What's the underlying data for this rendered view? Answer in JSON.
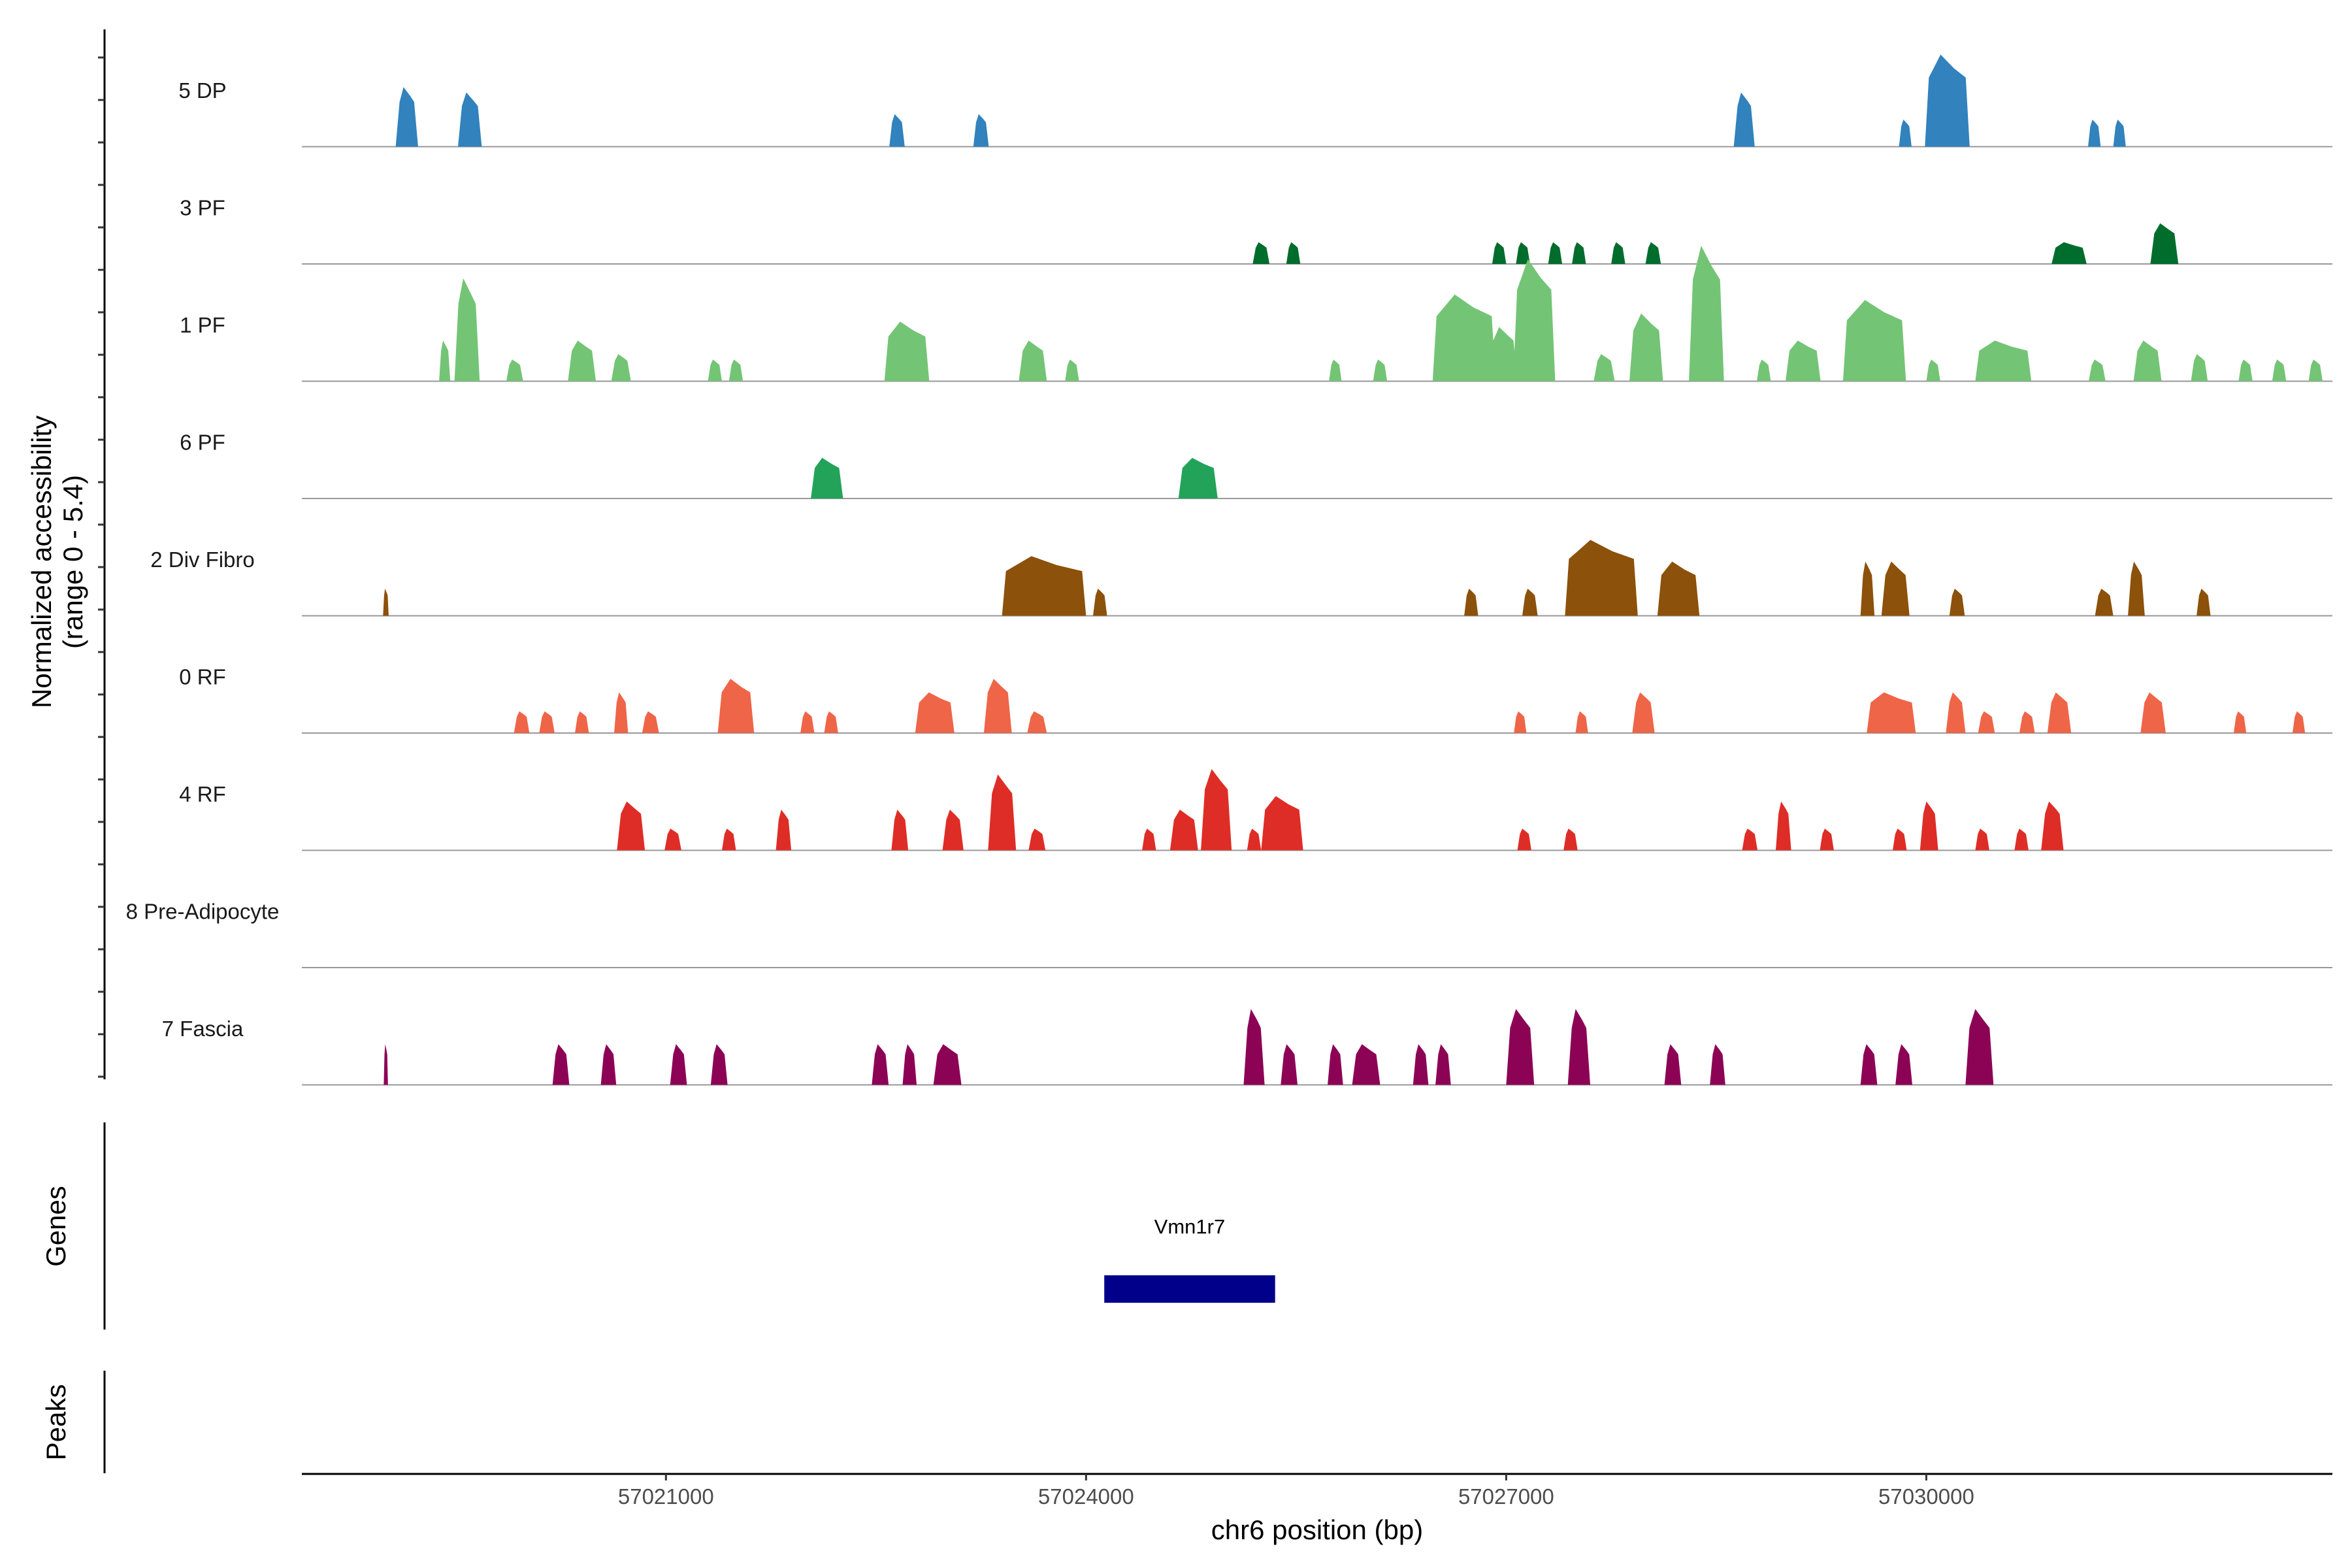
{
  "chart_data": {
    "type": "coverage",
    "y_axis_title": "Normalized accessibility",
    "y_axis_range_text": "(range 0 - 5.4)",
    "ylim": [
      0,
      5.4
    ],
    "x_axis_title": "chr6 position (bp)",
    "xlim": [
      57018400,
      57032900
    ],
    "x_ticks": [
      {
        "value": 57021000,
        "label": "57021000"
      },
      {
        "value": 57024000,
        "label": "57024000"
      },
      {
        "value": 57027000,
        "label": "57027000"
      },
      {
        "value": 57030000,
        "label": "57030000"
      }
    ],
    "tracks": [
      {
        "name": "5 DP",
        "color": "#3182bd",
        "peaks": [
          [
            57019150,
            160,
            2.2
          ],
          [
            57019600,
            170,
            2.0
          ],
          [
            57022650,
            110,
            1.2
          ],
          [
            57023250,
            110,
            1.2
          ],
          [
            57028700,
            150,
            2.0
          ],
          [
            57029850,
            90,
            1.0
          ],
          [
            57030150,
            320,
            3.4
          ],
          [
            57031200,
            90,
            1.0
          ],
          [
            57031380,
            90,
            1.0
          ]
        ]
      },
      {
        "name": "3 PF",
        "color": "#006d2c",
        "peaks": [
          [
            57025250,
            120,
            0.8
          ],
          [
            57025480,
            100,
            0.8
          ],
          [
            57026950,
            100,
            0.8
          ],
          [
            57027120,
            100,
            0.8
          ],
          [
            57027350,
            100,
            0.8
          ],
          [
            57027520,
            100,
            0.8
          ],
          [
            57027800,
            100,
            0.8
          ],
          [
            57028050,
            110,
            0.8
          ],
          [
            57031020,
            250,
            0.8
          ],
          [
            57031700,
            200,
            1.5
          ]
        ]
      },
      {
        "name": "1 PF",
        "color": "#74c476",
        "peaks": [
          [
            57019420,
            80,
            1.5
          ],
          [
            57019580,
            180,
            3.8
          ],
          [
            57019920,
            120,
            0.8
          ],
          [
            57020400,
            200,
            1.5
          ],
          [
            57020680,
            140,
            1.0
          ],
          [
            57021350,
            100,
            0.8
          ],
          [
            57021500,
            100,
            0.8
          ],
          [
            57022720,
            320,
            2.2
          ],
          [
            57023620,
            200,
            1.5
          ],
          [
            57023900,
            100,
            0.8
          ],
          [
            57025780,
            90,
            0.8
          ],
          [
            57026100,
            100,
            0.8
          ],
          [
            57026700,
            450,
            3.2
          ],
          [
            57026980,
            200,
            2.0
          ],
          [
            57027200,
            300,
            4.5
          ],
          [
            57027700,
            150,
            1.0
          ],
          [
            57028000,
            240,
            2.5
          ],
          [
            57028430,
            250,
            5.0
          ],
          [
            57028840,
            100,
            0.8
          ],
          [
            57029120,
            250,
            1.5
          ],
          [
            57029630,
            450,
            3.0
          ],
          [
            57030050,
            100,
            0.8
          ],
          [
            57030550,
            400,
            1.5
          ],
          [
            57031220,
            120,
            0.8
          ],
          [
            57031580,
            200,
            1.5
          ],
          [
            57031950,
            120,
            1.0
          ],
          [
            57032280,
            100,
            0.8
          ],
          [
            57032520,
            100,
            0.8
          ],
          [
            57032780,
            100,
            0.8
          ]
        ]
      },
      {
        "name": "6 PF",
        "color": "#23a35a",
        "peaks": [
          [
            57022150,
            230,
            1.5
          ],
          [
            57024800,
            280,
            1.5
          ]
        ]
      },
      {
        "name": "2 Div Fibro",
        "color": "#8c510a",
        "peaks": [
          [
            57019000,
            40,
            1.0
          ],
          [
            57023700,
            600,
            2.2
          ],
          [
            57024100,
            100,
            1.0
          ],
          [
            57026750,
            100,
            1.0
          ],
          [
            57027170,
            110,
            1.0
          ],
          [
            57027680,
            520,
            2.8
          ],
          [
            57028230,
            300,
            2.0
          ],
          [
            57029580,
            100,
            2.0
          ],
          [
            57029780,
            200,
            2.0
          ],
          [
            57030220,
            110,
            1.0
          ],
          [
            57031270,
            130,
            1.0
          ],
          [
            57031500,
            120,
            2.0
          ],
          [
            57031980,
            100,
            1.0
          ]
        ]
      },
      {
        "name": "0 RF",
        "color": "#ef6548",
        "peaks": [
          [
            57019970,
            110,
            0.8
          ],
          [
            57020150,
            110,
            0.8
          ],
          [
            57020400,
            100,
            0.8
          ],
          [
            57020680,
            100,
            1.5
          ],
          [
            57020890,
            120,
            0.8
          ],
          [
            57021500,
            260,
            2.0
          ],
          [
            57022010,
            100,
            0.8
          ],
          [
            57022180,
            100,
            0.8
          ],
          [
            57022920,
            280,
            1.5
          ],
          [
            57023370,
            200,
            2.0
          ],
          [
            57023650,
            140,
            0.8
          ],
          [
            57027100,
            90,
            0.8
          ],
          [
            57027540,
            90,
            0.8
          ],
          [
            57027980,
            160,
            1.5
          ],
          [
            57029750,
            350,
            1.5
          ],
          [
            57030210,
            140,
            1.5
          ],
          [
            57030430,
            120,
            0.8
          ],
          [
            57030720,
            110,
            0.8
          ],
          [
            57030950,
            170,
            1.5
          ],
          [
            57031620,
            180,
            1.5
          ],
          [
            57032240,
            90,
            0.8
          ],
          [
            57032660,
            90,
            0.8
          ]
        ]
      },
      {
        "name": "4 RF",
        "color": "#de2d26",
        "peaks": [
          [
            57020750,
            200,
            1.8
          ],
          [
            57021050,
            120,
            0.8
          ],
          [
            57021450,
            100,
            0.8
          ],
          [
            57021840,
            110,
            1.5
          ],
          [
            57022670,
            120,
            1.5
          ],
          [
            57023050,
            150,
            1.5
          ],
          [
            57023400,
            200,
            2.8
          ],
          [
            57023650,
            120,
            0.8
          ],
          [
            57024450,
            100,
            0.8
          ],
          [
            57024700,
            200,
            1.5
          ],
          [
            57024930,
            220,
            3.0
          ],
          [
            57025200,
            100,
            0.8
          ],
          [
            57025400,
            300,
            2.0
          ],
          [
            57027130,
            100,
            0.8
          ],
          [
            57027460,
            100,
            0.8
          ],
          [
            57028740,
            110,
            0.8
          ],
          [
            57028980,
            110,
            1.8
          ],
          [
            57029290,
            100,
            0.8
          ],
          [
            57029810,
            100,
            0.8
          ],
          [
            57030020,
            130,
            1.8
          ],
          [
            57030400,
            100,
            0.8
          ],
          [
            57030680,
            100,
            0.8
          ],
          [
            57030900,
            160,
            1.8
          ]
        ]
      },
      {
        "name": "8 Pre-Adipocyte",
        "color": "#fd8d3c",
        "peaks": []
      },
      {
        "name": "7 Fascia",
        "color": "#8c0356",
        "peaks": [
          [
            57019000,
            30,
            1.5
          ],
          [
            57020250,
            120,
            1.5
          ],
          [
            57020590,
            110,
            1.5
          ],
          [
            57021090,
            120,
            1.5
          ],
          [
            57021380,
            120,
            1.5
          ],
          [
            57022530,
            120,
            1.5
          ],
          [
            57022740,
            100,
            1.5
          ],
          [
            57023010,
            200,
            1.5
          ],
          [
            57025200,
            150,
            2.8
          ],
          [
            57025450,
            120,
            1.5
          ],
          [
            57025780,
            110,
            1.5
          ],
          [
            57026000,
            200,
            1.5
          ],
          [
            57026390,
            110,
            1.5
          ],
          [
            57026550,
            110,
            1.5
          ],
          [
            57027100,
            200,
            2.8
          ],
          [
            57027520,
            160,
            2.8
          ],
          [
            57028190,
            120,
            1.5
          ],
          [
            57028510,
            110,
            1.5
          ],
          [
            57029590,
            120,
            1.5
          ],
          [
            57029840,
            120,
            1.5
          ],
          [
            57030380,
            200,
            2.8
          ]
        ]
      }
    ],
    "genes": {
      "title": "Genes",
      "items": [
        {
          "name": "Vmn1r7",
          "start": 57024130,
          "end": 57025350,
          "color": "#00008b"
        }
      ]
    },
    "peaks_track": {
      "title": "Peaks",
      "items": []
    }
  }
}
